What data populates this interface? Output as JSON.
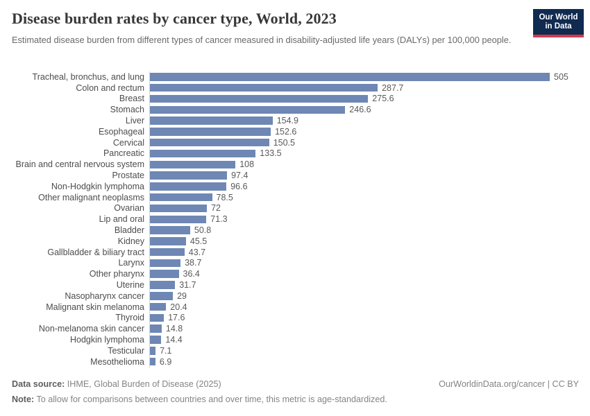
{
  "header": {
    "title": "Disease burden rates by cancer type, World, 2023",
    "subtitle": "Estimated disease burden from different types of cancer measured in disability-adjusted life years (DALYs) per 100,000 people.",
    "logo": {
      "line1": "Our World",
      "line2": "in Data",
      "bg_color": "#102a50",
      "accent_color": "#d23a4c"
    }
  },
  "chart_data": {
    "type": "bar",
    "orientation": "horizontal",
    "title": "Disease burden rates by cancer type, World, 2023",
    "xlabel": "",
    "ylabel": "",
    "xlim": [
      0,
      505
    ],
    "grid": false,
    "legend": false,
    "bar_color": "#6e87b4",
    "axis_line_color": "#d6d6d6",
    "categories": [
      "Tracheal, bronchus, and lung",
      "Colon and rectum",
      "Breast",
      "Stomach",
      "Liver",
      "Esophageal",
      "Cervical",
      "Pancreatic",
      "Brain and central nervous system",
      "Prostate",
      "Non-Hodgkin lymphoma",
      "Other malignant neoplasms",
      "Ovarian",
      "Lip and oral",
      "Bladder",
      "Kidney",
      "Gallbladder & biliary tract",
      "Larynx",
      "Other pharynx",
      "Uterine",
      "Nasopharynx cancer",
      "Malignant skin melanoma",
      "Thyroid",
      "Non-melanoma skin cancer",
      "Hodgkin lymphoma",
      "Testicular",
      "Mesothelioma"
    ],
    "values": [
      505,
      287.7,
      275.6,
      246.6,
      154.9,
      152.6,
      150.5,
      133.5,
      108,
      97.4,
      96.6,
      78.5,
      72,
      71.3,
      50.8,
      45.5,
      43.7,
      38.7,
      36.4,
      31.7,
      29,
      20.4,
      17.6,
      14.8,
      14.4,
      7.1,
      6.9
    ]
  },
  "footer": {
    "source_label": "Data source:",
    "source_text": " IHME, Global Burden of Disease (2025)",
    "right_text": "OurWorldinData.org/cancer | CC BY",
    "note_label": "Note:",
    "note_text": " To allow for comparisons between countries and over time, this metric is age-standardized."
  }
}
